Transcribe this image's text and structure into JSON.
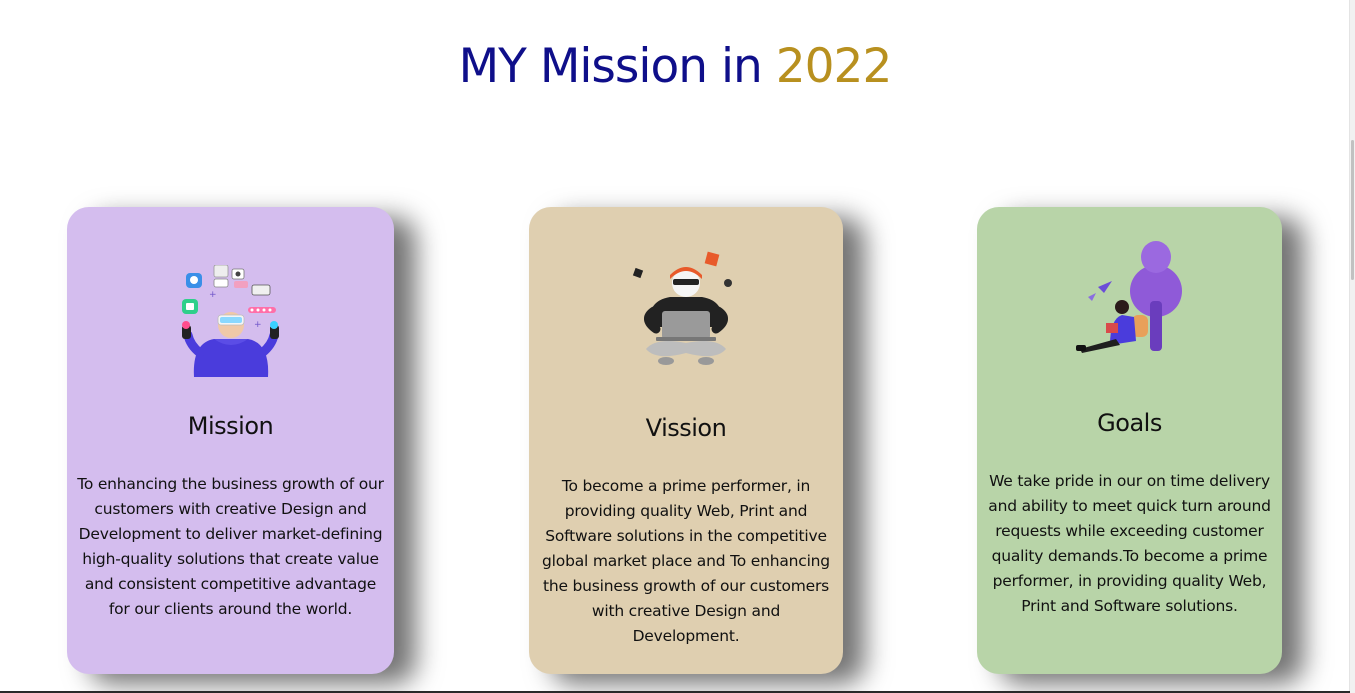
{
  "heading": {
    "main": "MY Mission in ",
    "year": "2022"
  },
  "colors": {
    "heading_main": "#0f0f8a",
    "heading_year": "#b8901f",
    "card_mission_bg": "#d4bdee",
    "card_vision_bg": "#dfcfb0",
    "card_goals_bg": "#b8d4a8"
  },
  "cards": [
    {
      "title": "Mission",
      "icon": "person-juggling-apps-icon",
      "text": "To enhancing the business growth of our customers with creative Design and Development to deliver market-defining high-quality solutions that create value and consistent competitive advantage for our clients around the world."
    },
    {
      "title": "Vission",
      "icon": "person-with-laptop-icon",
      "text": "To become a prime performer, in providing quality Web, Print and Software solutions in the competitive global market place and To enhancing the business growth of our customers with creative Design and Development."
    },
    {
      "title": "Goals",
      "icon": "person-reading-under-tree-icon",
      "text": "We take pride in our on time delivery and ability to meet quick turn around requests while exceeding customer quality demands.To become a prime performer, in providing quality Web, Print and Software solutions."
    }
  ]
}
